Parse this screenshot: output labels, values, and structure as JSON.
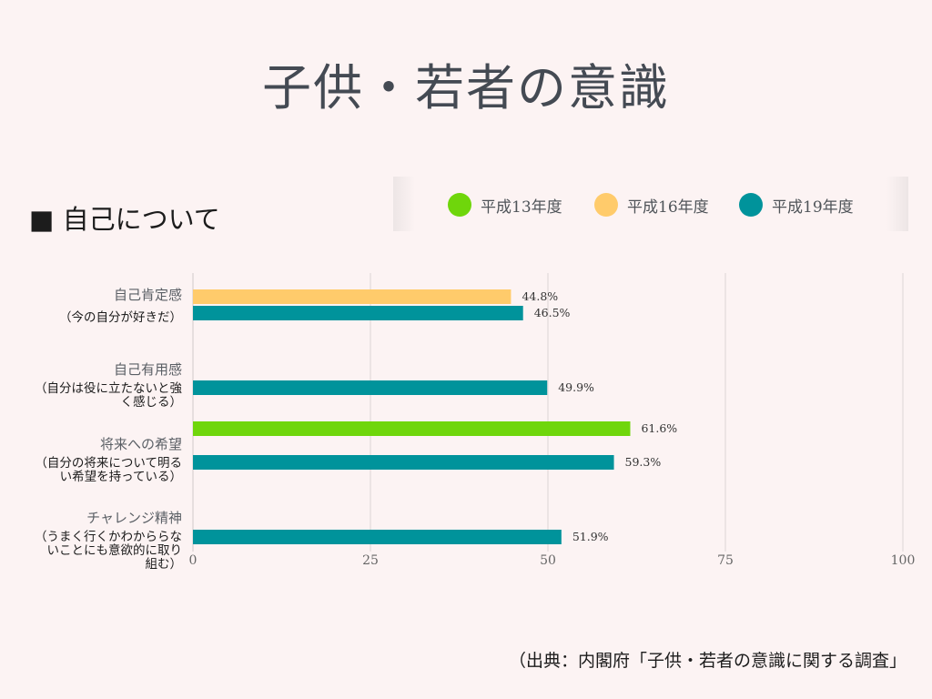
{
  "title": "子供・若者の意識",
  "section_heading": "■ 自己について",
  "source": "（出典：内閣府「子供・若者の意識に関する調査」",
  "chart_data": {
    "type": "bar",
    "orientation": "horizontal",
    "xlim": [
      0,
      100
    ],
    "x_ticks": [
      "0",
      "25",
      "50",
      "75",
      "100"
    ],
    "grid": true,
    "legend_position": "top-right",
    "series": [
      {
        "name": "平成13年度",
        "color": "#6fd60b"
      },
      {
        "name": "平成16年度",
        "color": "#ffcb6b"
      },
      {
        "name": "平成19年度",
        "color": "#00939b"
      }
    ],
    "categories": [
      {
        "label": "自己肯定感",
        "sub": [
          "（今の自分が好きだ）"
        ],
        "bars": [
          {
            "series": 1,
            "value": 44.8,
            "label": "44.8%"
          },
          {
            "series": 2,
            "value": 46.5,
            "label": "46.5%"
          }
        ]
      },
      {
        "label": "自己有用感",
        "sub": [
          "（自分は役に立たないと強",
          "く感じる）"
        ],
        "bars": [
          {
            "series": 2,
            "value": 49.9,
            "label": "49.9%"
          }
        ]
      },
      {
        "label": "将来への希望",
        "sub": [
          "（自分の将来について明る",
          "い希望を持っている）"
        ],
        "bars": [
          {
            "series": 0,
            "value": 61.6,
            "label": "61.6%"
          },
          {
            "series": 2,
            "value": 59.3,
            "label": "59.3%"
          }
        ]
      },
      {
        "label": "チャレンジ精神",
        "sub": [
          "（うまく行くかわかららな",
          "いことにも意欲的に取り",
          "組む）"
        ],
        "bars": [
          {
            "series": 2,
            "value": 51.9,
            "label": "51.9%"
          }
        ]
      }
    ]
  }
}
